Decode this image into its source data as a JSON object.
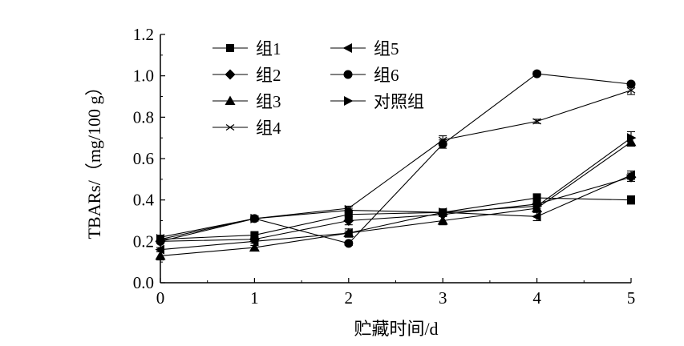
{
  "chart_data": {
    "type": "line",
    "xlabel": "贮藏时间/d",
    "ylabel": "TBARs/（mg/100 g）",
    "x": [
      0,
      1,
      2,
      3,
      4,
      5
    ],
    "xlim": [
      0,
      5
    ],
    "ylim": [
      0,
      1.2
    ],
    "xticks": [
      "0",
      "1",
      "2",
      "3",
      "4",
      "5"
    ],
    "yticks": [
      "0.0",
      "0.2",
      "0.4",
      "0.6",
      "0.8",
      "1.0",
      "1.2"
    ],
    "grid": false,
    "legend_position": "top-left",
    "series": [
      {
        "name": "组1",
        "marker": "square",
        "values": [
          0.21,
          0.23,
          0.33,
          0.34,
          0.41,
          0.4
        ],
        "errors": [
          0.01,
          0.01,
          0.02,
          0.01,
          0.02,
          0.02
        ]
      },
      {
        "name": "组2",
        "marker": "diamond",
        "values": [
          0.2,
          0.21,
          0.3,
          0.33,
          0.38,
          0.51
        ],
        "errors": [
          0.01,
          0.01,
          0.02,
          0.01,
          0.02,
          0.02
        ]
      },
      {
        "name": "组3",
        "marker": "triangle-up",
        "values": [
          0.13,
          0.17,
          0.24,
          0.3,
          0.36,
          0.68
        ],
        "errors": [
          0.02,
          0.01,
          0.02,
          0.02,
          0.02,
          0.02
        ]
      },
      {
        "name": "组4",
        "marker": "x",
        "values": [
          0.22,
          0.31,
          0.36,
          0.69,
          0.78,
          0.93
        ],
        "errors": [
          0.01,
          0.01,
          0.01,
          0.02,
          0.01,
          0.02
        ]
      },
      {
        "name": "组5",
        "marker": "triangle-left",
        "values": [
          0.16,
          0.2,
          0.24,
          0.34,
          0.32,
          0.52
        ],
        "errors": [
          0.01,
          0.01,
          0.01,
          0.01,
          0.02,
          0.02
        ]
      },
      {
        "name": "组6",
        "marker": "circle",
        "values": [
          0.2,
          0.31,
          0.19,
          0.67,
          1.01,
          0.96
        ],
        "errors": [
          0.01,
          0.01,
          0.01,
          0.02,
          0.01,
          0.01
        ]
      },
      {
        "name": "对照组",
        "marker": "triangle-right",
        "values": [
          0.21,
          0.31,
          0.35,
          0.34,
          0.37,
          0.7
        ],
        "errors": [
          0.01,
          0.01,
          0.01,
          0.01,
          0.02,
          0.03
        ]
      }
    ]
  }
}
